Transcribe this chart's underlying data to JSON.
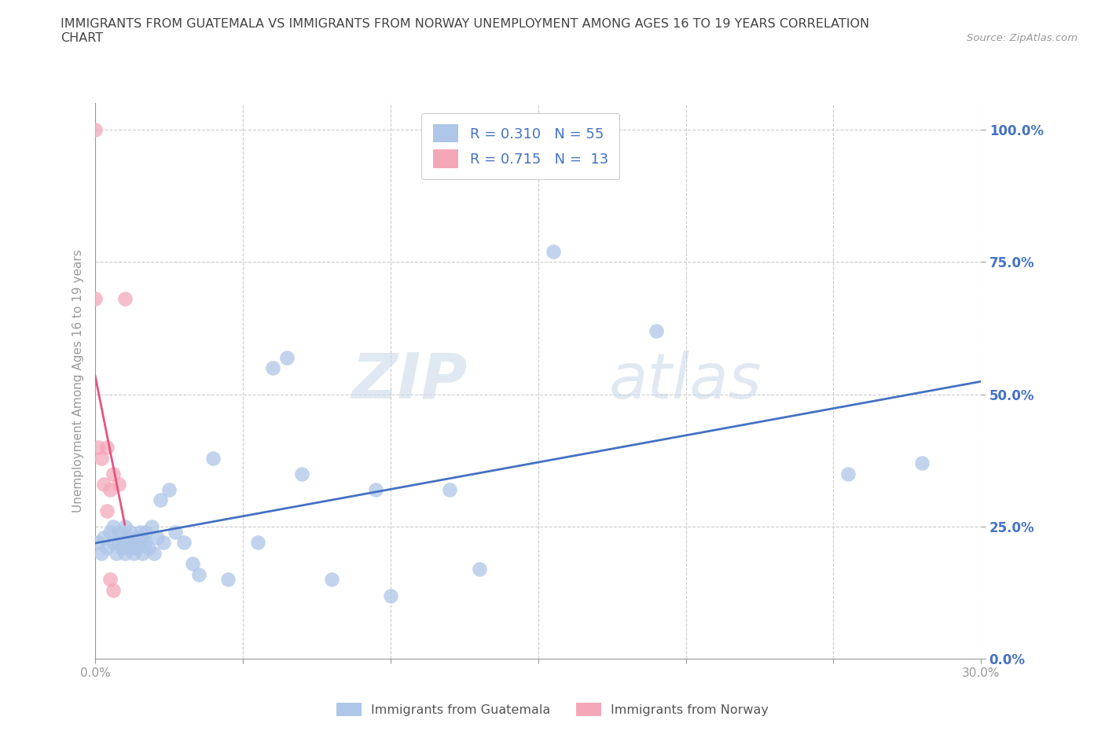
{
  "title": "IMMIGRANTS FROM GUATEMALA VS IMMIGRANTS FROM NORWAY UNEMPLOYMENT AMONG AGES 16 TO 19 YEARS CORRELATION\nCHART",
  "source_text": "Source: ZipAtlas.com",
  "ylabel": "Unemployment Among Ages 16 to 19 years",
  "xlim": [
    0.0,
    0.3
  ],
  "ylim": [
    0.0,
    1.05
  ],
  "yticks": [
    0.0,
    0.25,
    0.5,
    0.75,
    1.0
  ],
  "ytick_labels": [
    "0.0%",
    "25.0%",
    "50.0%",
    "75.0%",
    "100.0%"
  ],
  "xticks": [
    0.0,
    0.05,
    0.1,
    0.15,
    0.2,
    0.25,
    0.3
  ],
  "xtick_labels": [
    "0.0%",
    "",
    "",
    "",
    "",
    "",
    "30.0%"
  ],
  "guatemala_color": "#aec6e8",
  "norway_color": "#f4a7b9",
  "guatemala_line_color": "#4472c4",
  "norway_line_color": "#e75480",
  "R_guatemala": 0.31,
  "N_guatemala": 55,
  "R_norway": 0.715,
  "N_norway": 13,
  "watermark_zip": "ZIP",
  "watermark_atlas": "atlas",
  "background_color": "#ffffff",
  "grid_color": "#cccccc",
  "axis_color": "#999999",
  "title_color": "#444444",
  "label_color": "#4472c4",
  "guatemala_x": [
    0.001,
    0.002,
    0.003,
    0.004,
    0.005,
    0.006,
    0.006,
    0.007,
    0.008,
    0.008,
    0.009,
    0.009,
    0.01,
    0.01,
    0.01,
    0.011,
    0.011,
    0.012,
    0.012,
    0.013,
    0.013,
    0.014,
    0.014,
    0.015,
    0.015,
    0.016,
    0.016,
    0.017,
    0.017,
    0.018,
    0.019,
    0.02,
    0.021,
    0.022,
    0.023,
    0.025,
    0.027,
    0.03,
    0.033,
    0.035,
    0.04,
    0.045,
    0.055,
    0.06,
    0.065,
    0.07,
    0.08,
    0.095,
    0.1,
    0.12,
    0.13,
    0.155,
    0.19,
    0.255,
    0.28
  ],
  "guatemala_y": [
    0.22,
    0.2,
    0.23,
    0.21,
    0.24,
    0.22,
    0.25,
    0.2,
    0.22,
    0.24,
    0.23,
    0.21,
    0.22,
    0.2,
    0.25,
    0.23,
    0.22,
    0.21,
    0.24,
    0.2,
    0.22,
    0.23,
    0.21,
    0.22,
    0.24,
    0.2,
    0.23,
    0.22,
    0.24,
    0.21,
    0.25,
    0.2,
    0.23,
    0.3,
    0.22,
    0.32,
    0.24,
    0.22,
    0.18,
    0.16,
    0.38,
    0.15,
    0.22,
    0.55,
    0.57,
    0.35,
    0.15,
    0.32,
    0.12,
    0.32,
    0.17,
    0.77,
    0.62,
    0.35,
    0.37
  ],
  "norway_x": [
    0.0,
    0.0,
    0.001,
    0.002,
    0.003,
    0.004,
    0.004,
    0.005,
    0.005,
    0.006,
    0.006,
    0.008,
    0.01
  ],
  "norway_y": [
    1.0,
    0.68,
    0.4,
    0.38,
    0.33,
    0.28,
    0.4,
    0.32,
    0.15,
    0.13,
    0.35,
    0.33,
    0.68
  ]
}
